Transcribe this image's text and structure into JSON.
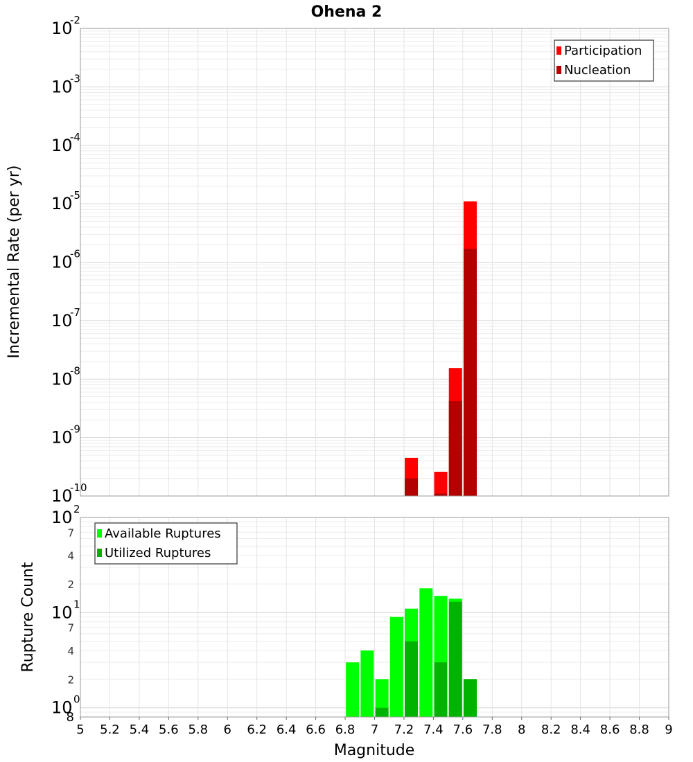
{
  "chart_data": [
    {
      "type": "bar",
      "title": "Ohena 2",
      "xlabel": "",
      "ylabel": "Incremental Rate (per yr)",
      "yscale": "log",
      "ylim": [
        1e-10,
        0.01
      ],
      "xlim": [
        5,
        9
      ],
      "y_major_ticks": [
        {
          "base": "10",
          "exp": "-2"
        },
        {
          "base": "10",
          "exp": "-3"
        },
        {
          "base": "10",
          "exp": "-4"
        },
        {
          "base": "10",
          "exp": "-5"
        },
        {
          "base": "10",
          "exp": "-6"
        },
        {
          "base": "10",
          "exp": "-7"
        },
        {
          "base": "10",
          "exp": "-8"
        },
        {
          "base": "10",
          "exp": "-9"
        },
        {
          "base": "10",
          "exp": "-10"
        }
      ],
      "grid": true,
      "legend_position": "top-right",
      "series": [
        {
          "name": "Participation",
          "color": "#ff0000",
          "points": [
            [
              7.25,
              4.5e-10
            ],
            [
              7.45,
              2.6e-10
            ],
            [
              7.55,
              1.55e-08
            ],
            [
              7.65,
              1.1e-05
            ]
          ]
        },
        {
          "name": "Nucleation",
          "color": "#b30000",
          "points": [
            [
              7.25,
              2e-10
            ],
            [
              7.45,
              1.1e-10
            ],
            [
              7.55,
              4.2e-09
            ],
            [
              7.65,
              1.7e-06
            ]
          ]
        }
      ]
    },
    {
      "type": "bar",
      "xlabel": "Magnitude",
      "ylabel": "Rupture Count",
      "yscale": "log",
      "ylim": [
        0.8,
        100
      ],
      "xlim": [
        5,
        9
      ],
      "y_major_ticks": [
        {
          "base": "10",
          "exp": "2"
        },
        {
          "base": "10",
          "exp": "1"
        },
        {
          "base": "10",
          "exp": "0"
        }
      ],
      "y_minor_ticks": [
        "7",
        "4",
        "2",
        "7",
        "4",
        "2",
        "8"
      ],
      "x_ticks": [
        "5",
        "5.2",
        "5.4",
        "5.6",
        "5.8",
        "6",
        "6.2",
        "6.4",
        "6.6",
        "6.8",
        "7",
        "7.2",
        "7.4",
        "7.6",
        "7.8",
        "8",
        "8.2",
        "8.4",
        "8.6",
        "8.8",
        "9"
      ],
      "grid": true,
      "legend_position": "top-left",
      "series": [
        {
          "name": "Available Ruptures",
          "color": "#00ff00",
          "points": [
            [
              6.85,
              3
            ],
            [
              6.95,
              4
            ],
            [
              7.05,
              2
            ],
            [
              7.15,
              9
            ],
            [
              7.25,
              11
            ],
            [
              7.35,
              18
            ],
            [
              7.45,
              15
            ],
            [
              7.55,
              14
            ],
            [
              7.65,
              2
            ]
          ]
        },
        {
          "name": "Utilized Ruptures",
          "color": "#00b300",
          "points": [
            [
              7.05,
              1
            ],
            [
              7.25,
              5
            ],
            [
              7.45,
              3
            ],
            [
              7.55,
              13
            ],
            [
              7.65,
              2
            ]
          ]
        }
      ]
    }
  ]
}
